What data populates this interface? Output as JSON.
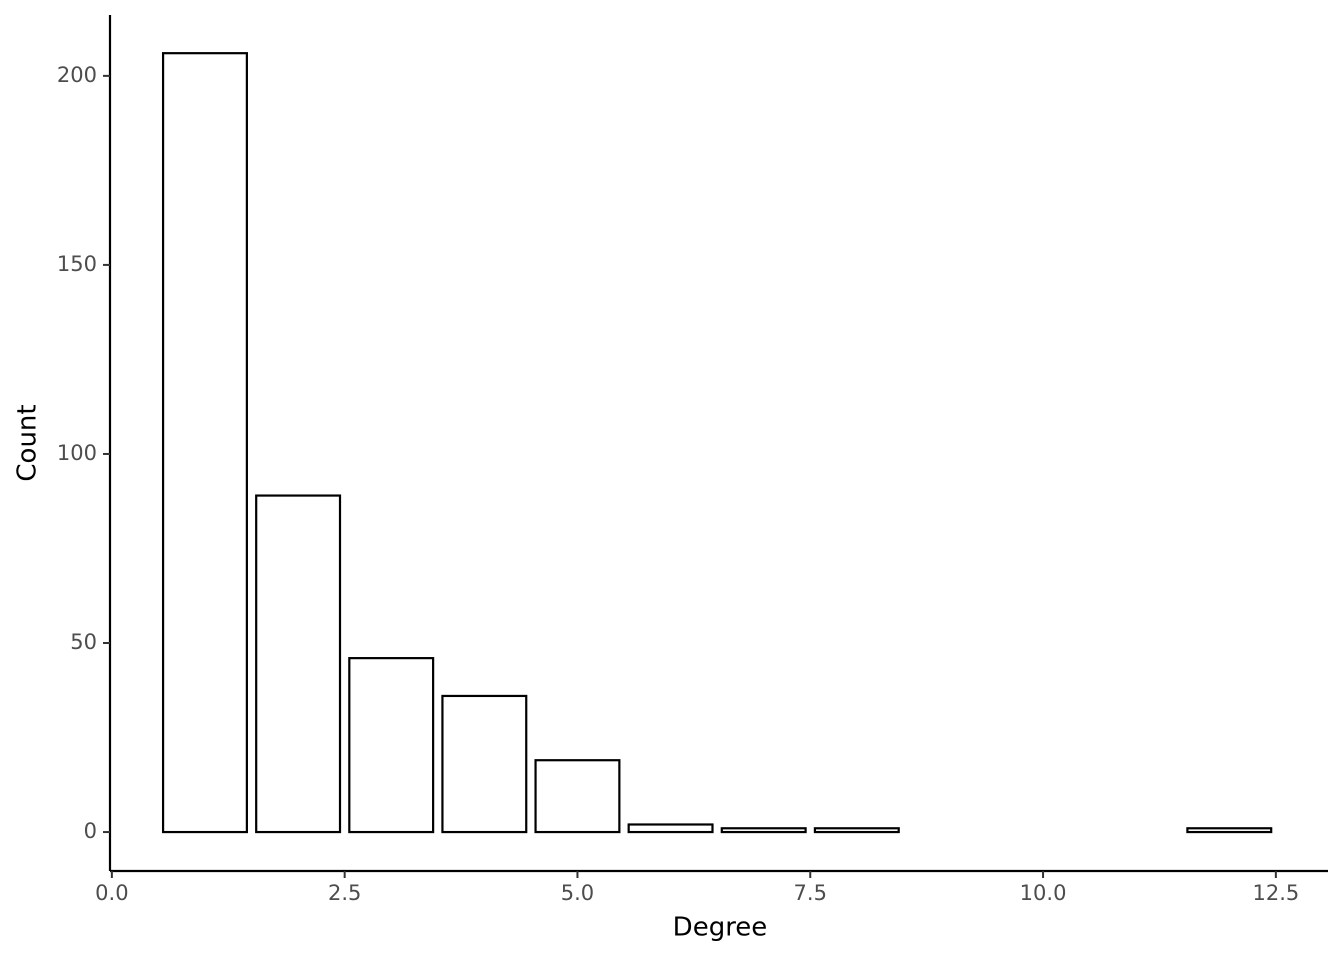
{
  "chart_data": {
    "type": "bar",
    "xlabel": "Degree",
    "ylabel": "Count",
    "x": [
      1,
      2,
      3,
      4,
      5,
      6,
      7,
      8,
      12
    ],
    "values": [
      206,
      89,
      46,
      36,
      19,
      2,
      1,
      1,
      1
    ],
    "color": "#ffffff",
    "edgecolor": "#000000",
    "xlim": [
      -0.02,
      13.06
    ],
    "xticks": [
      {
        "value": 0,
        "label": "0.0"
      },
      2.5,
      {
        "value": 5,
        "label": "5.0"
      },
      7.5,
      {
        "value": 10,
        "label": "10.0"
      },
      12.5
    ],
    "ylim": [
      -10.3,
      216.1
    ],
    "yticks": [
      0,
      50,
      100,
      150,
      200
    ],
    "grid": false
  }
}
